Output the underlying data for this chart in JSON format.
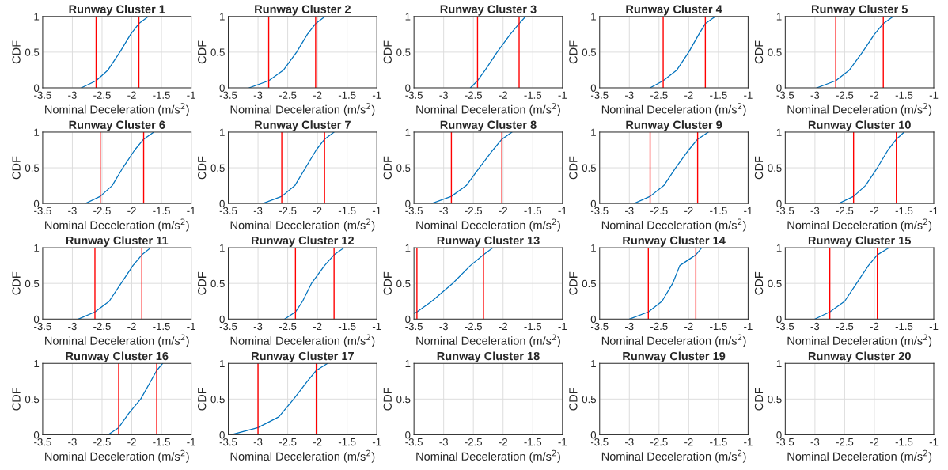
{
  "chart_data": [
    {
      "type": "line",
      "title": "Runway Cluster 1",
      "xlabel": "Nominal Deceleration (m/s$^{2}$)",
      "ylabel": "CDF",
      "xlim": [
        -3.5,
        -1
      ],
      "xticks": [
        -3.5,
        -3,
        -2.5,
        -2,
        -1.5,
        -1
      ],
      "ylim": [
        0,
        1
      ],
      "yticks": [
        0,
        0.5,
        1
      ],
      "grid": true,
      "series": [
        {
          "color": "#0072bd",
          "x": [
            -2.85,
            -2.6,
            -2.4,
            -2.2,
            -2.02,
            -1.88,
            -1.72
          ],
          "values": [
            0,
            0.1,
            0.25,
            0.5,
            0.75,
            0.9,
            1
          ]
        }
      ],
      "ref_lines": [
        {
          "axis": "x",
          "value": -2.6,
          "color": "#ff0000"
        },
        {
          "axis": "x",
          "value": -1.88,
          "color": "#ff0000"
        }
      ]
    },
    {
      "type": "line",
      "title": "Runway Cluster 2",
      "xlabel": "Nominal Deceleration (m/s$^{2}$)",
      "ylabel": "CDF",
      "xlim": [
        -3.5,
        -1
      ],
      "xticks": [
        -3.5,
        -3,
        -2.5,
        -2,
        -1.5,
        -1
      ],
      "ylim": [
        0,
        1
      ],
      "yticks": [
        0,
        0.5,
        1
      ],
      "grid": true,
      "series": [
        {
          "color": "#0072bd",
          "x": [
            -3.15,
            -2.82,
            -2.57,
            -2.35,
            -2.17,
            -2.03,
            -1.87
          ],
          "values": [
            0,
            0.1,
            0.25,
            0.5,
            0.75,
            0.9,
            1
          ]
        }
      ],
      "ref_lines": [
        {
          "axis": "x",
          "value": -2.82,
          "color": "#ff0000"
        },
        {
          "axis": "x",
          "value": -2.03,
          "color": "#ff0000"
        }
      ]
    },
    {
      "type": "line",
      "title": "Runway Cluster 3",
      "xlabel": "Nominal Deceleration (m/s$^{2}$)",
      "ylabel": "CDF",
      "xlim": [
        -3.5,
        -1
      ],
      "xticks": [
        -3.5,
        -3,
        -2.5,
        -2,
        -1.5,
        -1
      ],
      "ylim": [
        0,
        1
      ],
      "yticks": [
        0,
        0.5,
        1
      ],
      "grid": true,
      "series": [
        {
          "color": "#0072bd",
          "x": [
            -2.55,
            -2.43,
            -2.3,
            -2.1,
            -1.88,
            -1.73,
            -1.62
          ],
          "values": [
            0,
            0.1,
            0.25,
            0.5,
            0.75,
            0.9,
            1
          ]
        }
      ],
      "ref_lines": [
        {
          "axis": "x",
          "value": -2.43,
          "color": "#ff0000"
        },
        {
          "axis": "x",
          "value": -1.73,
          "color": "#ff0000"
        }
      ]
    },
    {
      "type": "line",
      "title": "Runway Cluster 4",
      "xlabel": "Nominal Deceleration (m/s$^{2}$)",
      "ylabel": "CDF",
      "xlim": [
        -3.5,
        -1
      ],
      "xticks": [
        -3.5,
        -3,
        -2.5,
        -2,
        -1.5,
        -1
      ],
      "ylim": [
        0,
        1
      ],
      "yticks": [
        0,
        0.5,
        1
      ],
      "grid": true,
      "series": [
        {
          "color": "#0072bd",
          "x": [
            -2.65,
            -2.43,
            -2.2,
            -2.0,
            -1.83,
            -1.72,
            -1.55
          ],
          "values": [
            0,
            0.1,
            0.25,
            0.5,
            0.75,
            0.9,
            1
          ]
        }
      ],
      "ref_lines": [
        {
          "axis": "x",
          "value": -2.43,
          "color": "#ff0000"
        },
        {
          "axis": "x",
          "value": -1.72,
          "color": "#ff0000"
        }
      ]
    },
    {
      "type": "line",
      "title": "Runway Cluster 5",
      "xlabel": "Nominal Deceleration (m/s$^{2}$)",
      "ylabel": "CDF",
      "xlim": [
        -3.5,
        -1
      ],
      "xticks": [
        -3.5,
        -3,
        -2.5,
        -2,
        -1.5,
        -1
      ],
      "ylim": [
        0,
        1
      ],
      "yticks": [
        0,
        0.5,
        1
      ],
      "grid": true,
      "series": [
        {
          "color": "#0072bd",
          "x": [
            -2.97,
            -2.65,
            -2.42,
            -2.2,
            -2.0,
            -1.85,
            -1.68
          ],
          "values": [
            0,
            0.1,
            0.25,
            0.5,
            0.75,
            0.9,
            1
          ]
        }
      ],
      "ref_lines": [
        {
          "axis": "x",
          "value": -2.65,
          "color": "#ff0000"
        },
        {
          "axis": "x",
          "value": -1.85,
          "color": "#ff0000"
        }
      ]
    },
    {
      "type": "line",
      "title": "Runway Cluster 6",
      "xlabel": "Nominal Deceleration (m/s$^{2}$)",
      "ylabel": "CDF",
      "xlim": [
        -3.5,
        -1
      ],
      "xticks": [
        -3.5,
        -3,
        -2.5,
        -2,
        -1.5,
        -1
      ],
      "ylim": [
        0,
        1
      ],
      "yticks": [
        0,
        0.5,
        1
      ],
      "grid": true,
      "series": [
        {
          "color": "#0072bd",
          "x": [
            -2.78,
            -2.53,
            -2.33,
            -2.15,
            -1.95,
            -1.8,
            -1.63
          ],
          "values": [
            0,
            0.1,
            0.25,
            0.5,
            0.75,
            0.9,
            1
          ]
        }
      ],
      "ref_lines": [
        {
          "axis": "x",
          "value": -2.53,
          "color": "#ff0000"
        },
        {
          "axis": "x",
          "value": -1.8,
          "color": "#ff0000"
        }
      ]
    },
    {
      "type": "line",
      "title": "Runway Cluster 7",
      "xlabel": "Nominal Deceleration (m/s$^{2}$)",
      "ylabel": "CDF",
      "xlim": [
        -3.5,
        -1
      ],
      "xticks": [
        -3.5,
        -3,
        -2.5,
        -2,
        -1.5,
        -1
      ],
      "ylim": [
        0,
        1
      ],
      "yticks": [
        0,
        0.5,
        1
      ],
      "grid": true,
      "series": [
        {
          "color": "#0072bd",
          "x": [
            -2.92,
            -2.6,
            -2.38,
            -2.2,
            -2.02,
            -1.88,
            -1.72
          ],
          "values": [
            0,
            0.1,
            0.25,
            0.5,
            0.75,
            0.9,
            1
          ]
        }
      ],
      "ref_lines": [
        {
          "axis": "x",
          "value": -2.6,
          "color": "#ff0000"
        },
        {
          "axis": "x",
          "value": -1.88,
          "color": "#ff0000"
        }
      ]
    },
    {
      "type": "line",
      "title": "Runway Cluster 8",
      "xlabel": "Nominal Deceleration (m/s$^{2}$)",
      "ylabel": "CDF",
      "xlim": [
        -3.5,
        -1
      ],
      "xticks": [
        -3.5,
        -3,
        -2.5,
        -2,
        -1.5,
        -1
      ],
      "ylim": [
        0,
        1
      ],
      "yticks": [
        0,
        0.5,
        1
      ],
      "grid": true,
      "series": [
        {
          "color": "#0072bd",
          "x": [
            -3.2,
            -2.87,
            -2.62,
            -2.4,
            -2.17,
            -2.02,
            -1.85
          ],
          "values": [
            0,
            0.1,
            0.25,
            0.5,
            0.75,
            0.9,
            1
          ]
        }
      ],
      "ref_lines": [
        {
          "axis": "x",
          "value": -2.87,
          "color": "#ff0000"
        },
        {
          "axis": "x",
          "value": -2.02,
          "color": "#ff0000"
        }
      ]
    },
    {
      "type": "line",
      "title": "Runway Cluster 9",
      "xlabel": "Nominal Deceleration (m/s$^{2}$)",
      "ylabel": "CDF",
      "xlim": [
        -3.5,
        -1
      ],
      "xticks": [
        -3.5,
        -3,
        -2.5,
        -2,
        -1.5,
        -1
      ],
      "ylim": [
        0,
        1
      ],
      "yticks": [
        0,
        0.5,
        1
      ],
      "grid": true,
      "series": [
        {
          "color": "#0072bd",
          "x": [
            -2.92,
            -2.65,
            -2.42,
            -2.22,
            -2.0,
            -1.85,
            -1.67
          ],
          "values": [
            0,
            0.1,
            0.25,
            0.5,
            0.75,
            0.9,
            1
          ]
        }
      ],
      "ref_lines": [
        {
          "axis": "x",
          "value": -2.65,
          "color": "#ff0000"
        },
        {
          "axis": "x",
          "value": -1.85,
          "color": "#ff0000"
        }
      ]
    },
    {
      "type": "line",
      "title": "Runway Cluster 10",
      "xlabel": "Nominal Deceleration (m/s$^{2}$)",
      "ylabel": "CDF",
      "xlim": [
        -3.5,
        -1
      ],
      "xticks": [
        -3.5,
        -3,
        -2.5,
        -2,
        -1.5,
        -1
      ],
      "ylim": [
        0,
        1
      ],
      "yticks": [
        0,
        0.5,
        1
      ],
      "grid": true,
      "series": [
        {
          "color": "#0072bd",
          "x": [
            -2.6,
            -2.35,
            -2.15,
            -1.95,
            -1.77,
            -1.63,
            -1.5
          ],
          "values": [
            0,
            0.1,
            0.25,
            0.5,
            0.75,
            0.9,
            1
          ]
        }
      ],
      "ref_lines": [
        {
          "axis": "x",
          "value": -2.35,
          "color": "#ff0000"
        },
        {
          "axis": "x",
          "value": -1.63,
          "color": "#ff0000"
        }
      ]
    },
    {
      "type": "line",
      "title": "Runway Cluster 11",
      "xlabel": "Nominal Deceleration (m/s$^{2}$)",
      "ylabel": "CDF",
      "xlim": [
        -3.5,
        -1
      ],
      "xticks": [
        -3.5,
        -3,
        -2.5,
        -2,
        -1.5,
        -1
      ],
      "ylim": [
        0,
        1
      ],
      "yticks": [
        0,
        0.5,
        1
      ],
      "grid": true,
      "series": [
        {
          "color": "#0072bd",
          "x": [
            -2.9,
            -2.62,
            -2.38,
            -2.18,
            -1.98,
            -1.83,
            -1.68
          ],
          "values": [
            0,
            0.1,
            0.25,
            0.5,
            0.75,
            0.9,
            1
          ]
        }
      ],
      "ref_lines": [
        {
          "axis": "x",
          "value": -2.62,
          "color": "#ff0000"
        },
        {
          "axis": "x",
          "value": -1.83,
          "color": "#ff0000"
        }
      ]
    },
    {
      "type": "line",
      "title": "Runway Cluster 12",
      "xlabel": "Nominal Deceleration (m/s$^{2}$)",
      "ylabel": "CDF",
      "xlim": [
        -3.5,
        -1
      ],
      "xticks": [
        -3.5,
        -3,
        -2.5,
        -2,
        -1.5,
        -1
      ],
      "ylim": [
        0,
        1
      ],
      "yticks": [
        0,
        0.5,
        1
      ],
      "grid": true,
      "series": [
        {
          "color": "#0072bd",
          "x": [
            -2.55,
            -2.37,
            -2.25,
            -2.1,
            -1.88,
            -1.72,
            -1.55
          ],
          "values": [
            0,
            0.1,
            0.25,
            0.5,
            0.75,
            0.9,
            1
          ]
        }
      ],
      "ref_lines": [
        {
          "axis": "x",
          "value": -2.37,
          "color": "#ff0000"
        },
        {
          "axis": "x",
          "value": -1.72,
          "color": "#ff0000"
        }
      ]
    },
    {
      "type": "line",
      "title": "Runway Cluster 13",
      "xlabel": "Nominal Deceleration (m/s$^{2}$)",
      "ylabel": "CDF",
      "xlim": [
        -3.5,
        -1
      ],
      "xticks": [
        -3.5,
        -3,
        -2.5,
        -2,
        -1.5,
        -1
      ],
      "ylim": [
        0,
        1
      ],
      "yticks": [
        0,
        0.5,
        1
      ],
      "grid": true,
      "series": [
        {
          "color": "#0072bd",
          "x": [
            -3.5,
            -3.45,
            -3.2,
            -2.85,
            -2.55,
            -2.33,
            -2.17
          ],
          "values": [
            0.08,
            0.1,
            0.25,
            0.5,
            0.75,
            0.9,
            1
          ]
        }
      ],
      "ref_lines": [
        {
          "axis": "x",
          "value": -3.45,
          "color": "#ff0000"
        },
        {
          "axis": "x",
          "value": -2.33,
          "color": "#ff0000"
        }
      ]
    },
    {
      "type": "line",
      "title": "Runway Cluster 14",
      "xlabel": "Nominal Deceleration (m/s$^{2}$)",
      "ylabel": "CDF",
      "xlim": [
        -3.5,
        -1
      ],
      "xticks": [
        -3.5,
        -3,
        -2.5,
        -2,
        -1.5,
        -1
      ],
      "ylim": [
        0,
        1
      ],
      "yticks": [
        0,
        0.5,
        1
      ],
      "grid": true,
      "series": [
        {
          "color": "#0072bd",
          "x": [
            -3.0,
            -2.68,
            -2.45,
            -2.27,
            -2.15,
            -1.88,
            -1.78
          ],
          "values": [
            0,
            0.1,
            0.25,
            0.5,
            0.75,
            0.9,
            1
          ]
        }
      ],
      "ref_lines": [
        {
          "axis": "x",
          "value": -2.68,
          "color": "#ff0000"
        },
        {
          "axis": "x",
          "value": -1.88,
          "color": "#ff0000"
        }
      ]
    },
    {
      "type": "line",
      "title": "Runway Cluster 15",
      "xlabel": "Nominal Deceleration (m/s$^{2}$)",
      "ylabel": "CDF",
      "xlim": [
        -3.5,
        -1
      ],
      "xticks": [
        -3.5,
        -3,
        -2.5,
        -2,
        -1.5,
        -1
      ],
      "ylim": [
        0,
        1
      ],
      "yticks": [
        0,
        0.5,
        1
      ],
      "grid": true,
      "series": [
        {
          "color": "#0072bd",
          "x": [
            -3.0,
            -2.75,
            -2.5,
            -2.3,
            -2.1,
            -1.95,
            -1.75
          ],
          "values": [
            0,
            0.1,
            0.25,
            0.5,
            0.75,
            0.9,
            1
          ]
        }
      ],
      "ref_lines": [
        {
          "axis": "x",
          "value": -2.75,
          "color": "#ff0000"
        },
        {
          "axis": "x",
          "value": -1.95,
          "color": "#ff0000"
        }
      ]
    },
    {
      "type": "line",
      "title": "Runway Cluster 16",
      "xlabel": "Nominal Deceleration (m/s$^{2}$)",
      "ylabel": "CDF",
      "xlim": [
        -3.5,
        -1
      ],
      "xticks": [
        -3.5,
        -3,
        -2.5,
        -2,
        -1.5,
        -1
      ],
      "ylim": [
        0,
        1
      ],
      "yticks": [
        0,
        0.5,
        1
      ],
      "grid": true,
      "series": [
        {
          "color": "#0072bd",
          "x": [
            -2.4,
            -2.22,
            -2.05,
            -1.85,
            -1.68,
            -1.58,
            -1.48
          ],
          "values": [
            0,
            0.1,
            0.3,
            0.5,
            0.75,
            0.9,
            1
          ]
        }
      ],
      "ref_lines": [
        {
          "axis": "x",
          "value": -2.22,
          "color": "#ff0000"
        },
        {
          "axis": "x",
          "value": -1.58,
          "color": "#ff0000"
        }
      ]
    },
    {
      "type": "line",
      "title": "Runway Cluster 17",
      "xlabel": "Nominal Deceleration (m/s$^{2}$)",
      "ylabel": "CDF",
      "xlim": [
        -3.5,
        -1
      ],
      "xticks": [
        -3.5,
        -3,
        -2.5,
        -2,
        -1.5,
        -1
      ],
      "ylim": [
        0,
        1
      ],
      "yticks": [
        0,
        0.5,
        1
      ],
      "grid": true,
      "series": [
        {
          "color": "#0072bd",
          "x": [
            -3.45,
            -3.0,
            -2.65,
            -2.4,
            -2.17,
            -2.02,
            -1.83
          ],
          "values": [
            0,
            0.1,
            0.25,
            0.5,
            0.75,
            0.9,
            1
          ]
        }
      ],
      "ref_lines": [
        {
          "axis": "x",
          "value": -3.0,
          "color": "#ff0000"
        },
        {
          "axis": "x",
          "value": -2.02,
          "color": "#ff0000"
        }
      ]
    },
    {
      "type": "line",
      "title": "Runway Cluster 18",
      "xlabel": "Nominal Deceleration (m/s$^{2}$)",
      "ylabel": "CDF",
      "xlim": [
        -3.5,
        -1
      ],
      "xticks": [
        -3.5,
        -3,
        -2.5,
        -2,
        -1.5,
        -1
      ],
      "ylim": [
        0,
        1
      ],
      "yticks": [
        0,
        0.5,
        1
      ],
      "grid": true
    },
    {
      "type": "line",
      "title": "Runway Cluster 19",
      "xlabel": "Nominal Deceleration (m/s$^{2}$)",
      "ylabel": "CDF",
      "xlim": [
        -3.5,
        -1
      ],
      "xticks": [
        -3.5,
        -3,
        -2.5,
        -2,
        -1.5,
        -1
      ],
      "ylim": [
        0,
        1
      ],
      "yticks": [
        0,
        0.5,
        1
      ],
      "grid": true
    },
    {
      "type": "line",
      "title": "Runway Cluster 20",
      "xlabel": "Nominal Deceleration (m/s$^{2}$)",
      "ylabel": "CDF",
      "xlim": [
        -3.5,
        -1
      ],
      "xticks": [
        -3.5,
        -3,
        -2.5,
        -2,
        -1.5,
        -1
      ],
      "ylim": [
        0,
        1
      ],
      "yticks": [
        0,
        0.5,
        1
      ],
      "grid": true
    }
  ]
}
